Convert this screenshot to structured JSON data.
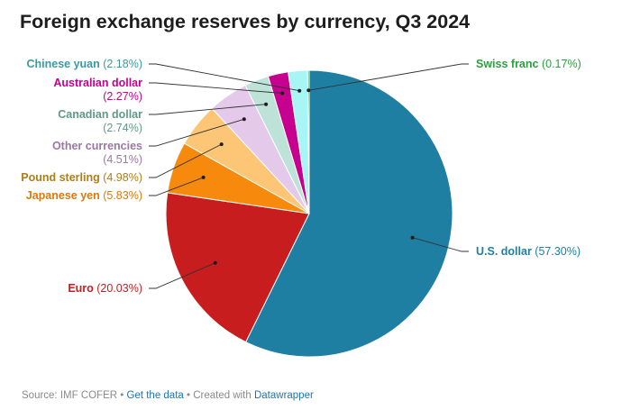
{
  "chart_data": {
    "type": "pie",
    "title": "Foreign exchange reserves by currency, Q3 2024",
    "slices": [
      {
        "label": "U.S. dollar",
        "value_text": "(57.30%)",
        "value": 57.3,
        "color": "#1e7fa3",
        "label_color": "#1e7fa3"
      },
      {
        "label": "Euro",
        "value_text": "(20.03%)",
        "value": 20.03,
        "color": "#c81d1f",
        "label_color": "#c81d1f"
      },
      {
        "label": "Japanese yen",
        "value_text": "(5.83%)",
        "value": 5.83,
        "color": "#f7890d",
        "label_color": "#e07808"
      },
      {
        "label": "Pound sterling",
        "value_text": "(4.98%)",
        "value": 4.98,
        "color": "#fdc676",
        "label_color": "#b07d18"
      },
      {
        "label": "Other currencies",
        "value_text": "(4.51%)",
        "value": 4.51,
        "color": "#e5c9ea",
        "label_color": "#9b78a3"
      },
      {
        "label": "Canadian dollar",
        "value_text": "(2.74%)",
        "value": 2.74,
        "color": "#bde3d8",
        "label_color": "#5f9a87"
      },
      {
        "label": "Australian dollar",
        "value_text": "(2.27%)",
        "value": 2.27,
        "color": "#c6008f",
        "label_color": "#c6008f"
      },
      {
        "label": "Chinese yuan",
        "value_text": "(2.18%)",
        "value": 2.18,
        "color": "#a8f5f5",
        "label_color": "#3a9aa2"
      },
      {
        "label": "Swiss franc",
        "value_text": "(0.17%)",
        "value": 0.17,
        "color": "#2aa13c",
        "label_color": "#2aa13c"
      }
    ]
  },
  "footer": {
    "source": "Source: IMF COFER",
    "sep1": " • ",
    "get_data": "Get the data",
    "sep2": " • Created with ",
    "made_with": "Datawrapper"
  }
}
